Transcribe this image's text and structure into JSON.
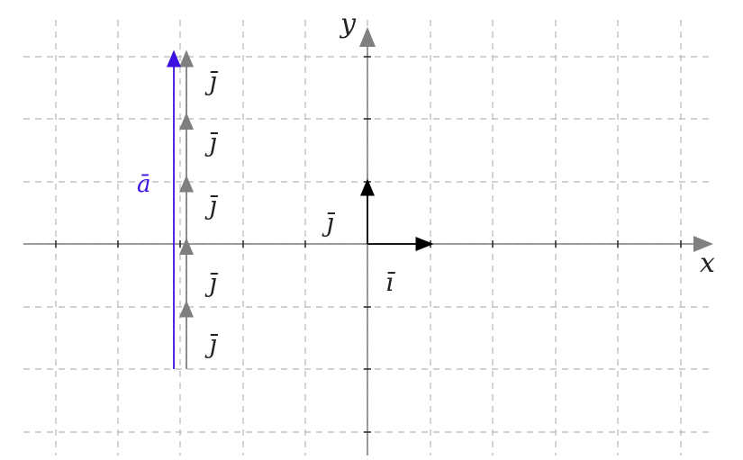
{
  "diagram": {
    "axes": {
      "x_label": "x",
      "y_label": "y"
    },
    "unit_vectors": {
      "i_label": "ı̄",
      "j_label": "ȷ̄",
      "color": "#000000"
    },
    "vector_a": {
      "label": "ā",
      "color": "#3b10e0",
      "length_units": 5,
      "label_text_color": "#3b10e0"
    },
    "j_chain": {
      "count": 5,
      "color": "#7f7f7f",
      "labels": [
        "ȷ̄",
        "ȷ̄",
        "ȷ̄",
        "ȷ̄",
        "ȷ̄"
      ]
    },
    "colors": {
      "grid": "#b8b8b8",
      "axis": "#808080"
    }
  }
}
